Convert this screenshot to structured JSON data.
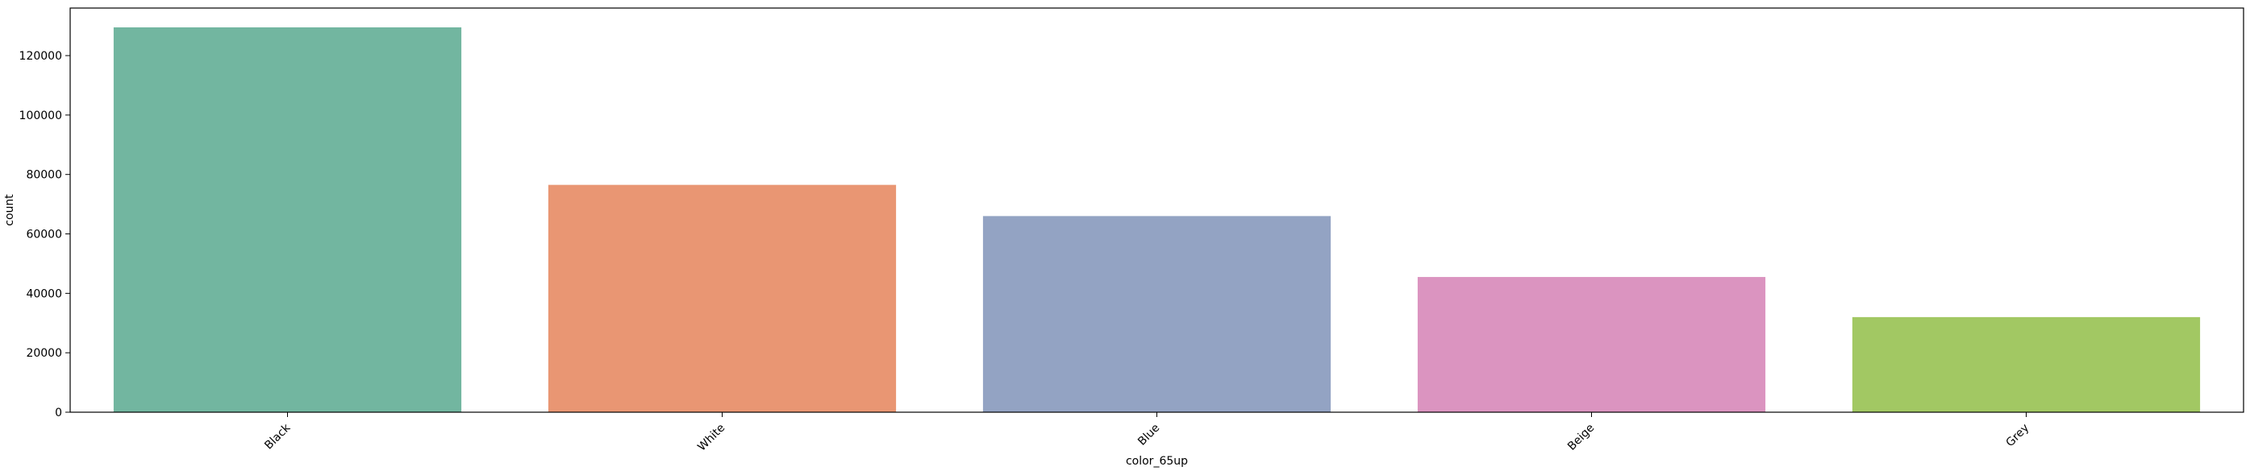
{
  "chart_data": {
    "type": "bar",
    "title": "",
    "xlabel": "color_65up",
    "ylabel": "count",
    "categories": [
      "Black",
      "White",
      "Blue",
      "Beige",
      "Grey"
    ],
    "values": [
      129500,
      76500,
      66000,
      45500,
      32000
    ],
    "colors": [
      "#72b6a0",
      "#e99673",
      "#93a3c3",
      "#db94c0",
      "#a2c863"
    ],
    "ylim": [
      0,
      136000
    ],
    "yticks": [
      0,
      20000,
      40000,
      60000,
      80000,
      100000,
      120000
    ],
    "ytick_labels": [
      "0",
      "20000",
      "40000",
      "60000",
      "80000",
      "100000",
      "120000"
    ],
    "grid": false,
    "legend": "none",
    "xtick_rotation_deg": 45
  }
}
